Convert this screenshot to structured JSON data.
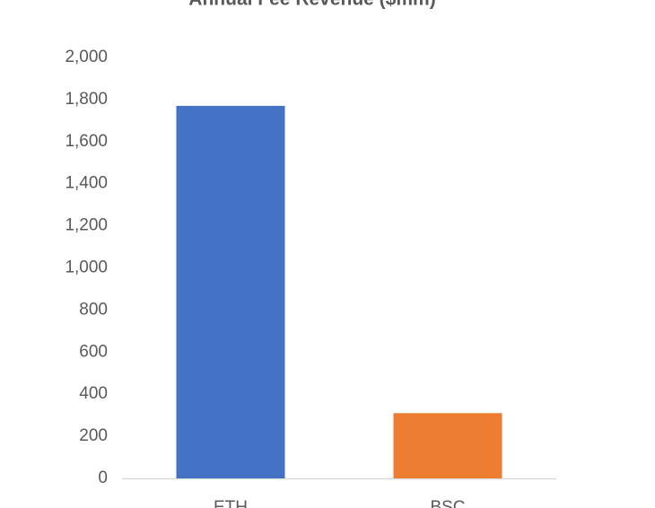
{
  "chart_data": {
    "type": "bar",
    "title": "Annual Fee Revenue ($mm)",
    "categories": [
      "ETH",
      "BSC"
    ],
    "values": [
      1770,
      310
    ],
    "colors": [
      "#4472c4",
      "#ed7d31"
    ],
    "ylim": [
      0,
      2000
    ],
    "yticks": [
      0,
      200,
      400,
      600,
      800,
      {
        "value": 1000,
        "label": "1,000"
      },
      {
        "value": 1200,
        "label": "1,200"
      },
      {
        "value": 1400,
        "label": "1,400"
      },
      {
        "value": 1600,
        "label": "1,600"
      },
      {
        "value": 1800,
        "label": "1,800"
      },
      {
        "value": 2000,
        "label": "2,000"
      }
    ],
    "grid": false
  }
}
